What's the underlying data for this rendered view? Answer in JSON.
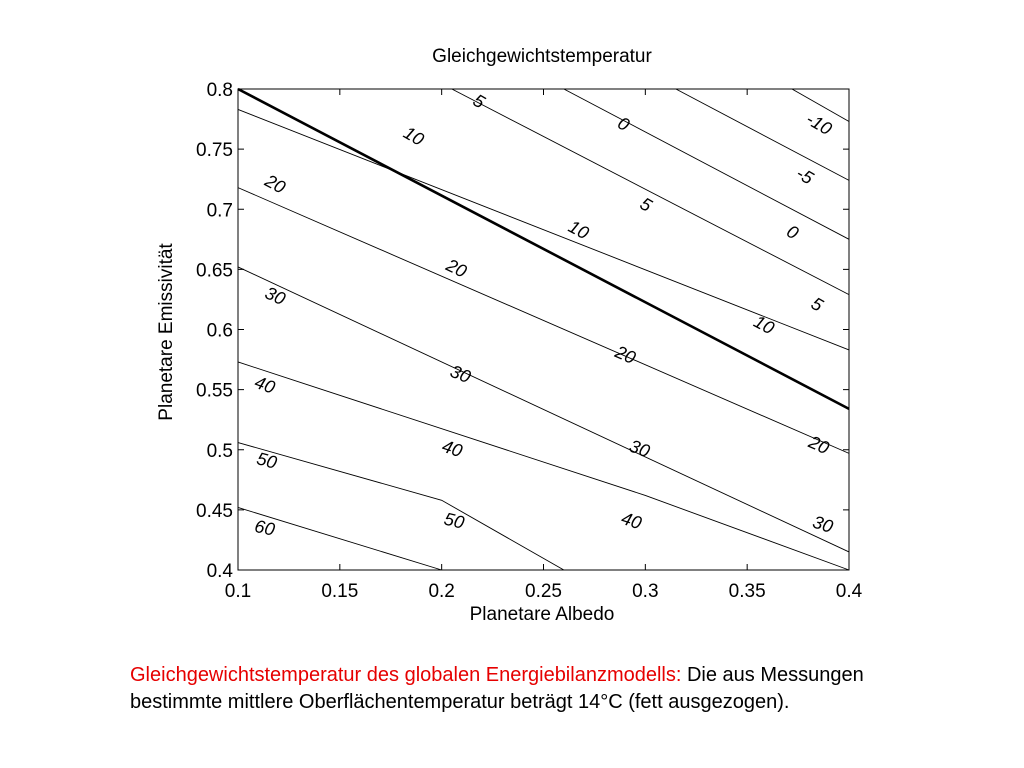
{
  "chart_data": {
    "type": "contour",
    "title": "Gleichgewichtstemperatur",
    "xlabel": "Planetare Albedo",
    "ylabel": "Planetare Emissivität",
    "xlim": [
      0.1,
      0.4
    ],
    "ylim": [
      0.4,
      0.8
    ],
    "xticks": [
      "0.1",
      "0.15",
      "0.2",
      "0.25",
      "0.3",
      "0.35",
      "0.4"
    ],
    "yticks": [
      "0.4",
      "0.45",
      "0.5",
      "0.55",
      "0.6",
      "0.65",
      "0.7",
      "0.75",
      "0.8"
    ],
    "levels": [
      -10,
      -5,
      0,
      5,
      10,
      20,
      30,
      40,
      50,
      60
    ],
    "highlight_level": 14,
    "contours": [
      {
        "level": -10,
        "points": [
          [
            0.372,
            0.8
          ],
          [
            0.4,
            0.773
          ]
        ]
      },
      {
        "level": -5,
        "points": [
          [
            0.315,
            0.8
          ],
          [
            0.4,
            0.724
          ]
        ]
      },
      {
        "level": 0,
        "points": [
          [
            0.26,
            0.8
          ],
          [
            0.4,
            0.675
          ]
        ]
      },
      {
        "level": 5,
        "points": [
          [
            0.205,
            0.8
          ],
          [
            0.4,
            0.629
          ]
        ]
      },
      {
        "level": 10,
        "points": [
          [
            0.1,
            0.783
          ],
          [
            0.4,
            0.583
          ]
        ]
      },
      {
        "level": 14,
        "bold": true,
        "points": [
          [
            0.1,
            0.8
          ],
          [
            0.4,
            0.534
          ]
        ]
      },
      {
        "level": 20,
        "points": [
          [
            0.1,
            0.718
          ],
          [
            0.4,
            0.497
          ]
        ]
      },
      {
        "level": 30,
        "points": [
          [
            0.1,
            0.652
          ],
          [
            0.4,
            0.415
          ]
        ]
      },
      {
        "level": 40,
        "points": [
          [
            0.1,
            0.573
          ],
          [
            0.3,
            0.462
          ],
          [
            0.4,
            0.4
          ]
        ]
      },
      {
        "level": 50,
        "points": [
          [
            0.1,
            0.506
          ],
          [
            0.2,
            0.458
          ],
          [
            0.26,
            0.4
          ]
        ]
      },
      {
        "level": 60,
        "points": [
          [
            0.1,
            0.452
          ],
          [
            0.2,
            0.4
          ]
        ]
      }
    ],
    "labels": [
      {
        "text": "5",
        "x": 0.218,
        "y": 0.789,
        "angle": 30
      },
      {
        "text": "0",
        "x": 0.289,
        "y": 0.77,
        "angle": 30
      },
      {
        "text": "-10",
        "x": 0.385,
        "y": 0.77,
        "angle": 30
      },
      {
        "text": "10",
        "x": 0.186,
        "y": 0.76,
        "angle": 30
      },
      {
        "text": "-5",
        "x": 0.378,
        "y": 0.727,
        "angle": 30
      },
      {
        "text": "20",
        "x": 0.118,
        "y": 0.72,
        "angle": 28
      },
      {
        "text": "5",
        "x": 0.3,
        "y": 0.703,
        "angle": 30
      },
      {
        "text": "10",
        "x": 0.267,
        "y": 0.682,
        "angle": 28
      },
      {
        "text": "0",
        "x": 0.372,
        "y": 0.68,
        "angle": 30
      },
      {
        "text": "20",
        "x": 0.207,
        "y": 0.65,
        "angle": 26
      },
      {
        "text": "30",
        "x": 0.118,
        "y": 0.627,
        "angle": 24
      },
      {
        "text": "5",
        "x": 0.384,
        "y": 0.62,
        "angle": 30
      },
      {
        "text": "10",
        "x": 0.358,
        "y": 0.603,
        "angle": 28
      },
      {
        "text": "20",
        "x": 0.29,
        "y": 0.578,
        "angle": 24
      },
      {
        "text": "30",
        "x": 0.209,
        "y": 0.562,
        "angle": 22
      },
      {
        "text": "40",
        "x": 0.113,
        "y": 0.553,
        "angle": 20
      },
      {
        "text": "20",
        "x": 0.385,
        "y": 0.503,
        "angle": 24
      },
      {
        "text": "30",
        "x": 0.297,
        "y": 0.5,
        "angle": 20
      },
      {
        "text": "40",
        "x": 0.205,
        "y": 0.5,
        "angle": 18
      },
      {
        "text": "50",
        "x": 0.114,
        "y": 0.49,
        "angle": 15
      },
      {
        "text": "40",
        "x": 0.293,
        "y": 0.44,
        "angle": 18
      },
      {
        "text": "50",
        "x": 0.206,
        "y": 0.44,
        "angle": 14
      },
      {
        "text": "30",
        "x": 0.387,
        "y": 0.437,
        "angle": 18
      },
      {
        "text": "60",
        "x": 0.113,
        "y": 0.434,
        "angle": 12
      }
    ],
    "grid": false
  },
  "caption": {
    "red": "Gleichgewichtstemperatur des globalen Energiebilanzmodells:",
    "black": " Die aus Messungen bestimmte mittlere Oberflächentemperatur beträgt 14°C (fett ausgezogen)."
  }
}
